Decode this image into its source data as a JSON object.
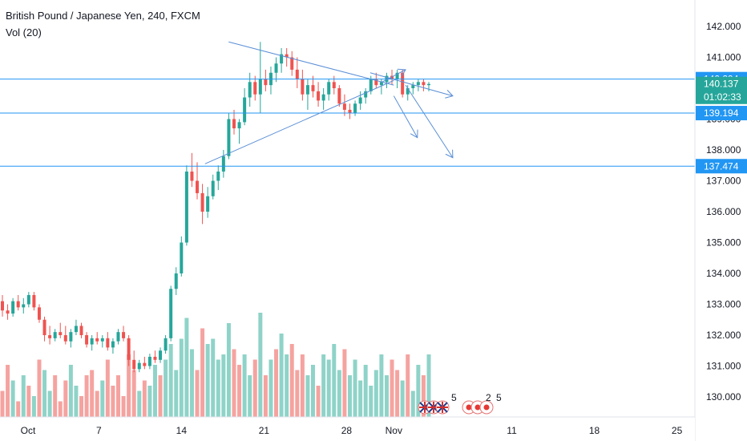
{
  "header": {
    "title": "British Pound / Japanese Yen, 240, FXCM",
    "indicator": "Vol (20)"
  },
  "colors": {
    "up": "#26a69a",
    "down": "#ef5350",
    "vol_up": "#8fd3c8",
    "vol_down": "#f5a3a0",
    "level_line": "#2196f3",
    "trend_line": "#5b8fd6",
    "last_price_tag": "#26a69a",
    "level_tag": "#2196f3"
  },
  "icons": {
    "events": [
      "uk-flag-icon",
      "uk-flag-icon",
      "uk-flag-icon",
      "japan-flag-icon",
      "japan-flag-icon",
      "japan-flag-icon"
    ],
    "event_counts": [
      "5",
      "2",
      "5"
    ]
  },
  "chart_data": {
    "type": "candlestick",
    "y_ticks": [
      "142.000",
      "141.000",
      "140.000",
      "139.000",
      "138.000",
      "137.000",
      "136.000",
      "135.000",
      "134.000",
      "133.000",
      "132.000",
      "131.000",
      "130.000"
    ],
    "ylim": [
      129.6,
      142.6
    ],
    "x_ticks": [
      "Oct",
      "7",
      "14",
      "21",
      "28",
      "Nov",
      "11",
      "18",
      "25"
    ],
    "horizontal_levels": [
      140.294,
      139.194,
      137.474
    ],
    "price_tags": [
      {
        "label": "140.294",
        "value": 140.294,
        "kind": "level"
      },
      {
        "label": "140.137",
        "value": 140.137,
        "kind": "last"
      },
      {
        "label": "01:02:33",
        "value": 139.72,
        "kind": "countdown"
      },
      {
        "label": "139.194",
        "value": 139.194,
        "kind": "level"
      },
      {
        "label": "137.474",
        "value": 137.474,
        "kind": "level"
      }
    ],
    "trend_lines": [
      {
        "name": "triangle-upper",
        "from": [
          "Oct 18",
          141.5
        ],
        "to": [
          "Nov 1",
          140.1
        ]
      },
      {
        "name": "triangle-lower",
        "from": [
          "Oct 16",
          137.55
        ],
        "to": [
          "Nov 1",
          140.25
        ]
      },
      {
        "name": "breakout-up-arrow",
        "from": [
          "Oct 31",
          140.2
        ],
        "to": [
          "Nov 2",
          140.6
        ]
      },
      {
        "name": "projection-arrow-flat",
        "from": [
          "Oct 30",
          140.5
        ],
        "to": [
          "Nov 6",
          139.75
        ]
      },
      {
        "name": "projection-arrow-mid",
        "from": [
          "Nov 1",
          139.75
        ],
        "to": [
          "Nov 3",
          138.4
        ]
      },
      {
        "name": "projection-arrow-deep",
        "from": [
          "Nov 2",
          140.1
        ],
        "to": [
          "Nov 6",
          137.75
        ]
      }
    ],
    "candles": [
      [
        133.1,
        133.3,
        132.6,
        132.8
      ],
      [
        132.8,
        133.0,
        132.5,
        132.7
      ],
      [
        132.7,
        133.2,
        132.6,
        133.1
      ],
      [
        133.1,
        133.3,
        132.8,
        132.9
      ],
      [
        132.9,
        133.2,
        132.7,
        133.0
      ],
      [
        133.0,
        133.4,
        132.9,
        133.3
      ],
      [
        133.3,
        133.4,
        132.8,
        132.9
      ],
      [
        132.9,
        133.0,
        132.4,
        132.5
      ],
      [
        132.5,
        132.6,
        131.8,
        132.0
      ],
      [
        132.0,
        132.3,
        131.7,
        131.9
      ],
      [
        131.9,
        132.2,
        131.8,
        132.1
      ],
      [
        132.1,
        132.4,
        131.9,
        132.0
      ],
      [
        132.0,
        132.3,
        131.7,
        131.8
      ],
      [
        131.8,
        132.2,
        131.6,
        132.1
      ],
      [
        132.1,
        132.5,
        132.0,
        132.3
      ],
      [
        132.3,
        132.4,
        131.9,
        132.0
      ],
      [
        132.0,
        132.1,
        131.6,
        131.7
      ],
      [
        131.7,
        132.0,
        131.5,
        131.9
      ],
      [
        131.9,
        132.1,
        131.7,
        131.8
      ],
      [
        131.8,
        132.0,
        131.6,
        131.9
      ],
      [
        131.9,
        132.1,
        131.5,
        131.6
      ],
      [
        131.6,
        131.9,
        131.4,
        131.8
      ],
      [
        131.8,
        132.2,
        131.7,
        132.1
      ],
      [
        132.1,
        132.3,
        131.8,
        131.9
      ],
      [
        131.9,
        132.0,
        131.0,
        131.2
      ],
      [
        131.2,
        131.5,
        130.8,
        130.9
      ],
      [
        130.9,
        131.2,
        130.8,
        131.1
      ],
      [
        131.1,
        131.3,
        130.9,
        131.0
      ],
      [
        131.0,
        131.4,
        130.9,
        131.3
      ],
      [
        131.3,
        131.5,
        131.1,
        131.2
      ],
      [
        131.2,
        131.6,
        131.1,
        131.5
      ],
      [
        131.5,
        132.0,
        131.4,
        131.9
      ],
      [
        131.9,
        133.6,
        131.8,
        133.5
      ],
      [
        133.5,
        134.2,
        133.3,
        134.0
      ],
      [
        134.0,
        135.2,
        133.9,
        135.0
      ],
      [
        135.0,
        137.5,
        134.9,
        137.3
      ],
      [
        137.3,
        137.9,
        136.8,
        137.0
      ],
      [
        137.0,
        137.6,
        136.4,
        136.6
      ],
      [
        136.6,
        136.9,
        135.6,
        136.0
      ],
      [
        136.0,
        136.8,
        135.8,
        136.5
      ],
      [
        136.5,
        137.2,
        136.4,
        137.0
      ],
      [
        137.0,
        137.5,
        136.7,
        137.3
      ],
      [
        137.3,
        138.0,
        137.1,
        137.8
      ],
      [
        137.8,
        139.2,
        137.7,
        139.0
      ],
      [
        139.0,
        139.3,
        138.5,
        138.7
      ],
      [
        138.7,
        139.0,
        138.2,
        138.9
      ],
      [
        138.9,
        140.0,
        138.8,
        139.7
      ],
      [
        139.7,
        140.5,
        139.4,
        140.2
      ],
      [
        140.2,
        140.4,
        139.6,
        139.8
      ],
      [
        139.8,
        141.5,
        139.2,
        140.3
      ],
      [
        140.3,
        140.6,
        139.9,
        140.1
      ],
      [
        140.1,
        140.7,
        139.8,
        140.5
      ],
      [
        140.5,
        141.0,
        140.2,
        140.8
      ],
      [
        140.8,
        141.3,
        140.5,
        141.1
      ],
      [
        141.1,
        141.3,
        140.7,
        141.0
      ],
      [
        141.0,
        141.2,
        140.4,
        140.6
      ],
      [
        140.6,
        141.0,
        140.0,
        140.3
      ],
      [
        140.3,
        140.6,
        139.6,
        139.8
      ],
      [
        139.8,
        140.3,
        139.3,
        140.1
      ],
      [
        140.1,
        140.4,
        139.7,
        139.9
      ],
      [
        139.9,
        140.2,
        139.4,
        139.6
      ],
      [
        139.6,
        140.0,
        139.3,
        139.8
      ],
      [
        139.8,
        140.3,
        139.6,
        140.2
      ],
      [
        140.2,
        140.4,
        139.8,
        140.0
      ],
      [
        140.0,
        140.1,
        139.4,
        139.5
      ],
      [
        139.5,
        139.8,
        139.1,
        139.3
      ],
      [
        139.3,
        139.5,
        139.0,
        139.2
      ],
      [
        139.2,
        139.6,
        139.1,
        139.5
      ],
      [
        139.5,
        139.9,
        139.3,
        139.7
      ],
      [
        139.7,
        140.0,
        139.5,
        139.9
      ],
      [
        139.9,
        140.4,
        139.8,
        140.3
      ],
      [
        140.3,
        140.5,
        140.0,
        140.1
      ],
      [
        140.1,
        140.3,
        139.8,
        140.2
      ],
      [
        140.2,
        140.5,
        140.0,
        140.4
      ],
      [
        140.4,
        140.6,
        140.1,
        140.3
      ],
      [
        140.3,
        140.6,
        140.0,
        140.5
      ],
      [
        140.5,
        140.6,
        139.7,
        139.8
      ],
      [
        139.8,
        140.1,
        139.6,
        140.0
      ],
      [
        140.0,
        140.2,
        139.8,
        140.1
      ],
      [
        140.1,
        140.3,
        139.9,
        140.2
      ],
      [
        140.2,
        140.3,
        139.9,
        140.1
      ],
      [
        140.1,
        140.2,
        139.9,
        140.137
      ]
    ],
    "volumes": [
      [
        5,
        "down"
      ],
      [
        10,
        "down"
      ],
      [
        7,
        "up"
      ],
      [
        3,
        "down"
      ],
      [
        8,
        "up"
      ],
      [
        6,
        "down"
      ],
      [
        4,
        "up"
      ],
      [
        11,
        "down"
      ],
      [
        9,
        "up"
      ],
      [
        5,
        "up"
      ],
      [
        8,
        "down"
      ],
      [
        3,
        "down"
      ],
      [
        7,
        "down"
      ],
      [
        10,
        "up"
      ],
      [
        6,
        "up"
      ],
      [
        4,
        "down"
      ],
      [
        8,
        "down"
      ],
      [
        9,
        "down"
      ],
      [
        5,
        "down"
      ],
      [
        7,
        "up"
      ],
      [
        11,
        "down"
      ],
      [
        6,
        "down"
      ],
      [
        8,
        "down"
      ],
      [
        4,
        "down"
      ],
      [
        12,
        "down"
      ],
      [
        9,
        "down"
      ],
      [
        5,
        "up"
      ],
      [
        7,
        "down"
      ],
      [
        6,
        "up"
      ],
      [
        10,
        "up"
      ],
      [
        8,
        "down"
      ],
      [
        11,
        "up"
      ],
      [
        14,
        "up"
      ],
      [
        9,
        "up"
      ],
      [
        15,
        "up"
      ],
      [
        19,
        "up"
      ],
      [
        13,
        "up"
      ],
      [
        9,
        "down"
      ],
      [
        17,
        "down"
      ],
      [
        14,
        "up"
      ],
      [
        15,
        "up"
      ],
      [
        11,
        "up"
      ],
      [
        12,
        "up"
      ],
      [
        18,
        "up"
      ],
      [
        13,
        "down"
      ],
      [
        10,
        "down"
      ],
      [
        12,
        "up"
      ],
      [
        8,
        "up"
      ],
      [
        11,
        "down"
      ],
      [
        20,
        "up"
      ],
      [
        8,
        "down"
      ],
      [
        11,
        "up"
      ],
      [
        13,
        "down"
      ],
      [
        16,
        "up"
      ],
      [
        12,
        "up"
      ],
      [
        14,
        "down"
      ],
      [
        9,
        "down"
      ],
      [
        12,
        "down"
      ],
      [
        8,
        "up"
      ],
      [
        10,
        "up"
      ],
      [
        6,
        "down"
      ],
      [
        12,
        "up"
      ],
      [
        11,
        "up"
      ],
      [
        14,
        "up"
      ],
      [
        9,
        "up"
      ],
      [
        13,
        "down"
      ],
      [
        8,
        "up"
      ],
      [
        11,
        "up"
      ],
      [
        7,
        "up"
      ],
      [
        10,
        "up"
      ],
      [
        6,
        "up"
      ],
      [
        9,
        "up"
      ],
      [
        12,
        "up"
      ],
      [
        8,
        "up"
      ],
      [
        11,
        "down"
      ],
      [
        9,
        "down"
      ],
      [
        7,
        "up"
      ],
      [
        12,
        "down"
      ],
      [
        5,
        "up"
      ],
      [
        10,
        "up"
      ],
      [
        8,
        "down"
      ],
      [
        12,
        "up"
      ]
    ]
  }
}
